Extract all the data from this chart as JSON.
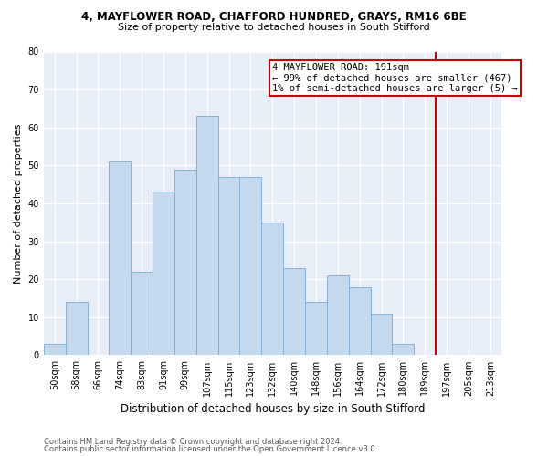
{
  "title_line1": "4, MAYFLOWER ROAD, CHAFFORD HUNDRED, GRAYS, RM16 6BE",
  "title_line2": "Size of property relative to detached houses in South Stifford",
  "xlabel": "Distribution of detached houses by size in South Stifford",
  "ylabel": "Number of detached properties",
  "footnote1": "Contains HM Land Registry data © Crown copyright and database right 2024.",
  "footnote2": "Contains public sector information licensed under the Open Government Licence v3.0.",
  "categories": [
    "50sqm",
    "58sqm",
    "66sqm",
    "74sqm",
    "83sqm",
    "91sqm",
    "99sqm",
    "107sqm",
    "115sqm",
    "123sqm",
    "132sqm",
    "140sqm",
    "148sqm",
    "156sqm",
    "164sqm",
    "172sqm",
    "180sqm",
    "189sqm",
    "197sqm",
    "205sqm",
    "213sqm"
  ],
  "values": [
    3,
    14,
    0,
    51,
    22,
    43,
    49,
    63,
    47,
    47,
    35,
    23,
    14,
    21,
    18,
    11,
    3,
    0,
    0,
    0,
    0
  ],
  "bar_color": "#c5d9ee",
  "bar_edge_color": "#7aaad0",
  "highlight_line_color": "#cc0000",
  "highlight_line_index": 17,
  "annotation_text": "4 MAYFLOWER ROAD: 191sqm\n← 99% of detached houses are smaller (467)\n1% of semi-detached houses are larger (5) →",
  "annotation_box_facecolor": "#ffffff",
  "annotation_box_edgecolor": "#cc0000",
  "ylim": [
    0,
    80
  ],
  "yticks": [
    0,
    10,
    20,
    30,
    40,
    50,
    60,
    70,
    80
  ],
  "plot_bg_color": "#e8eef7",
  "fig_bg_color": "#ffffff",
  "title1_fontsize": 8.5,
  "title2_fontsize": 8.0,
  "ylabel_fontsize": 8.0,
  "xlabel_fontsize": 8.5,
  "tick_fontsize": 7.0,
  "annot_fontsize": 7.5,
  "footnote_fontsize": 6.0
}
